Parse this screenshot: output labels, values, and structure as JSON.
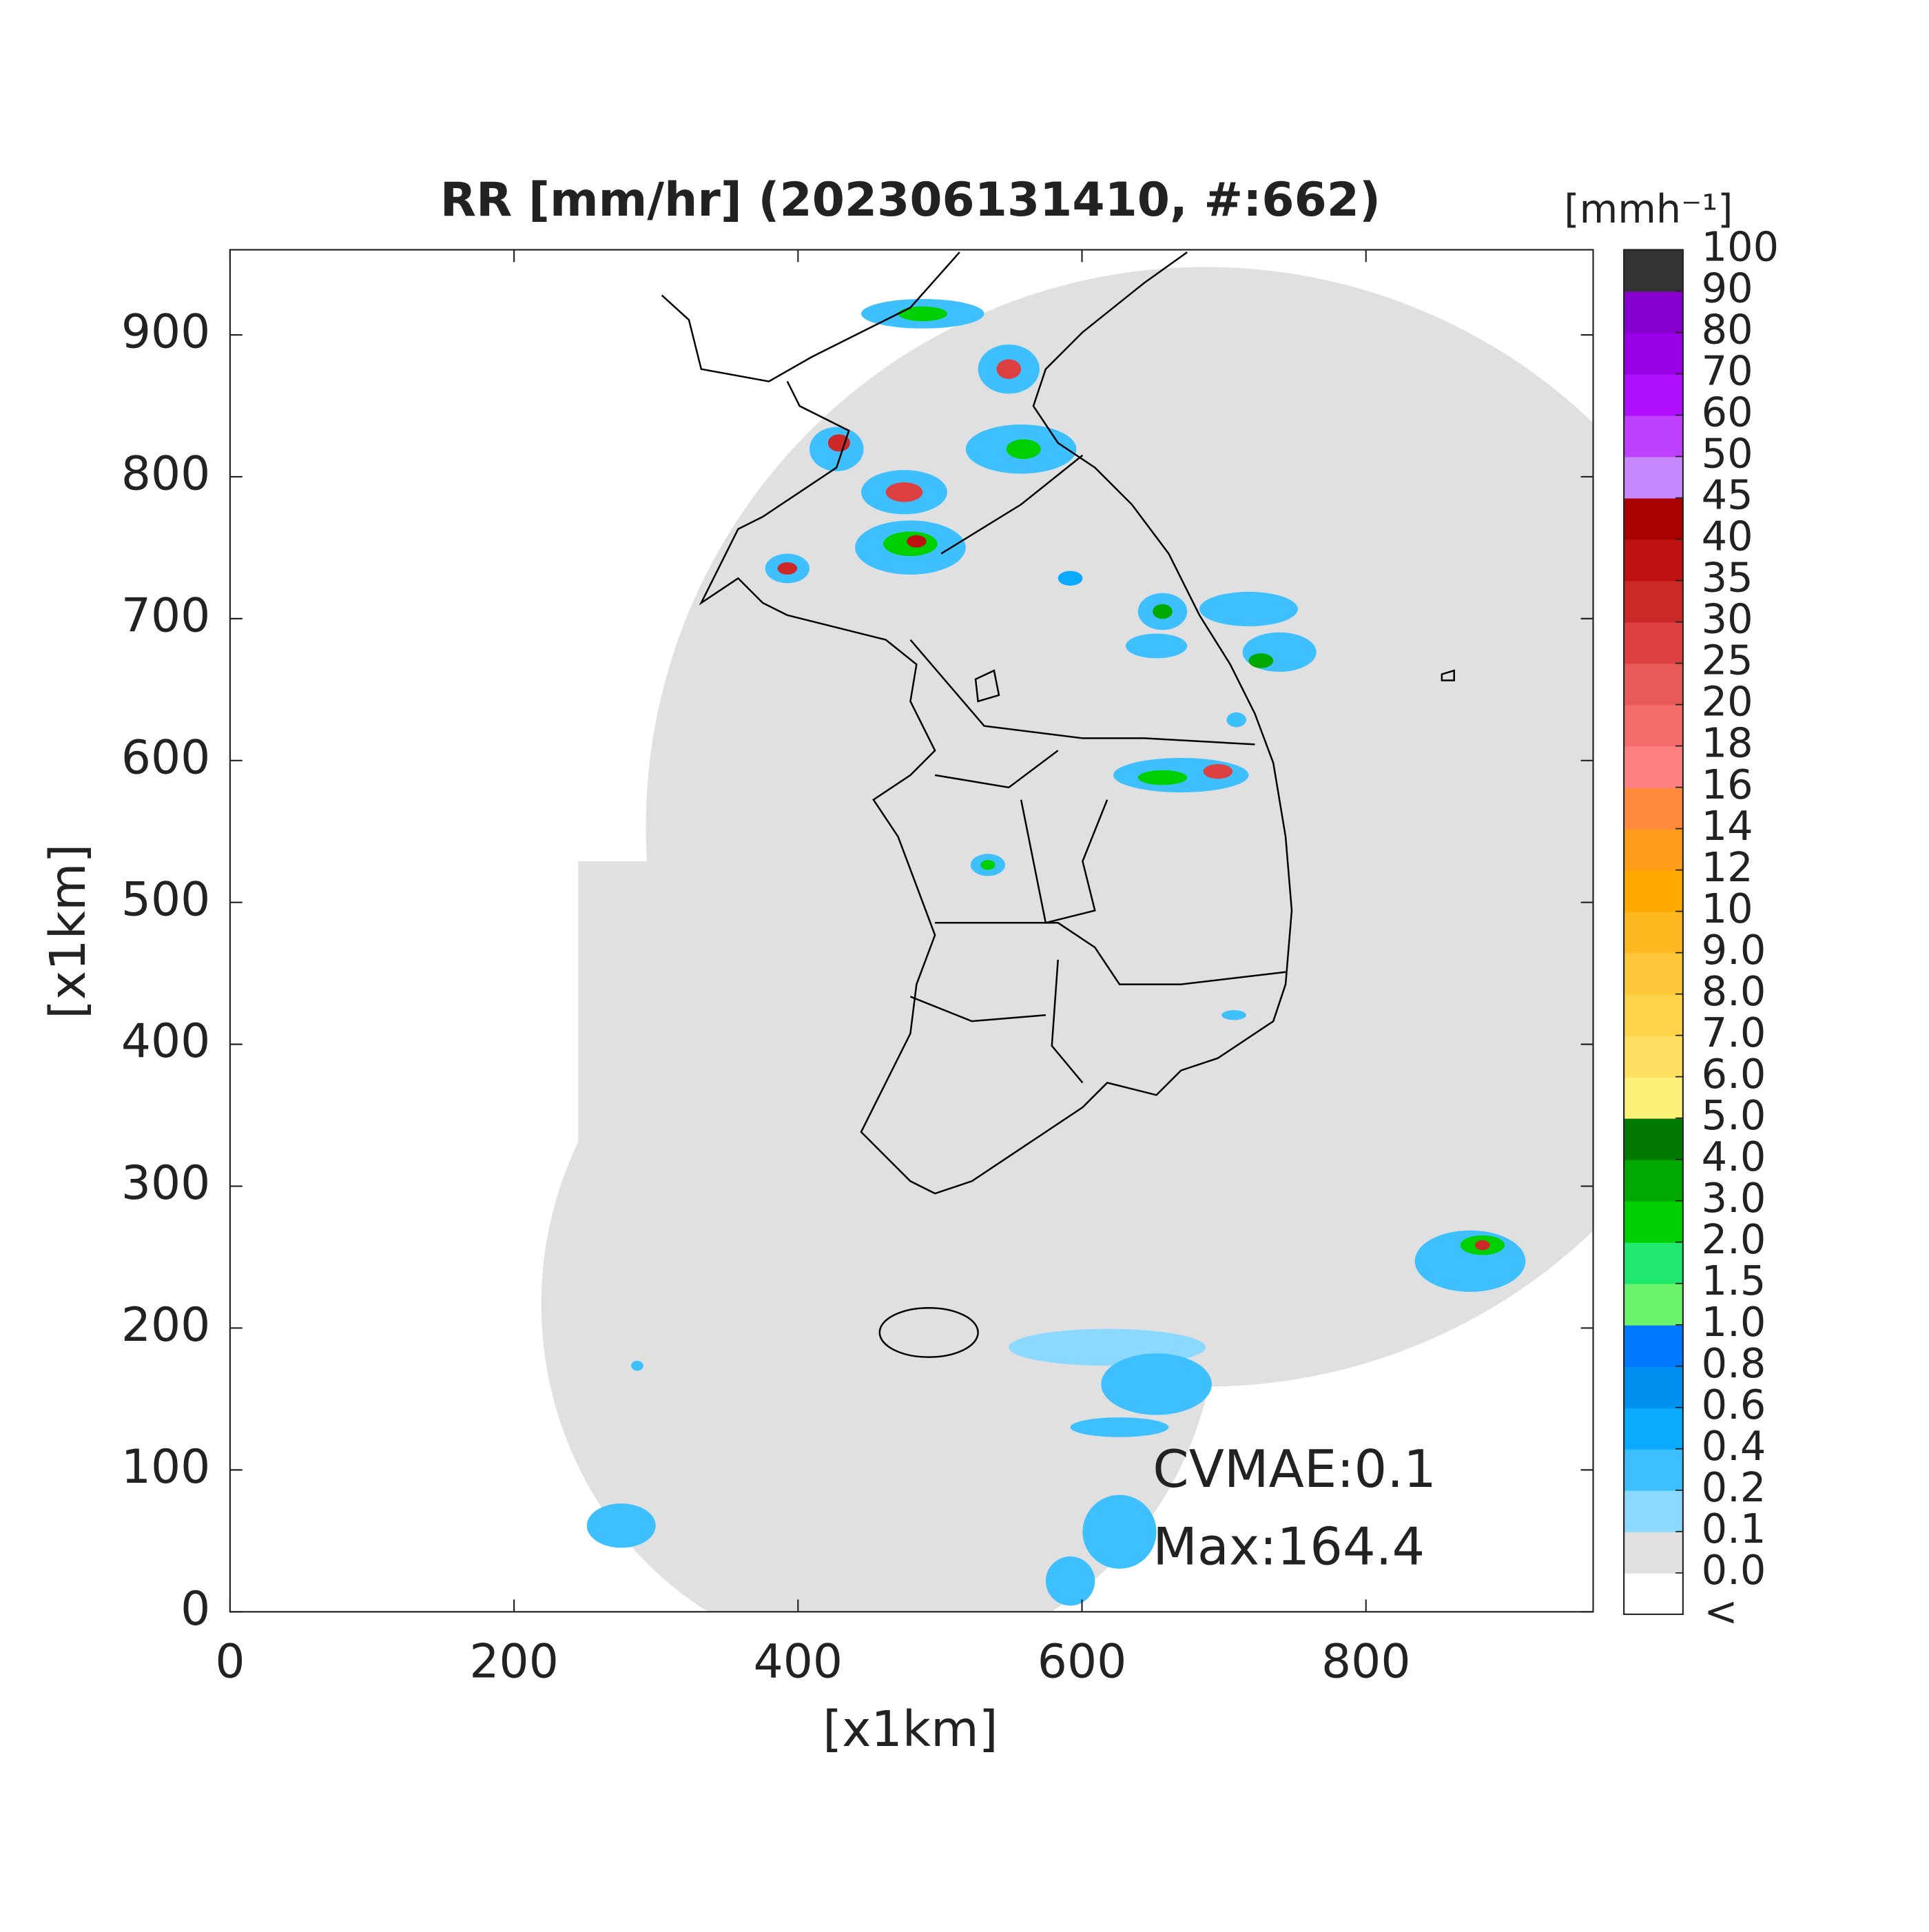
{
  "chart_data": {
    "type": "map",
    "title": "RR [mm/hr] (202306131410, #:662)",
    "x_label": "[x1km]",
    "y_label": "[x1km]",
    "xlim": [
      0,
      960
    ],
    "ylim": [
      0,
      960
    ],
    "xticks": [
      0,
      200,
      400,
      600,
      800
    ],
    "yticks": [
      0,
      100,
      200,
      300,
      400,
      500,
      600,
      700,
      800,
      900
    ],
    "annotations": [
      "CVMAE:0.1",
      "Max:164.4"
    ],
    "colorbar": {
      "label": "[mmh⁻¹]",
      "under_label": "<",
      "ticks": [
        {
          "value": 0,
          "label": "0.0"
        },
        0.1,
        0.2,
        0.4,
        0.6,
        0.8,
        {
          "value": 1,
          "label": "1.0"
        },
        1.5,
        {
          "value": 2,
          "label": "2.0"
        },
        {
          "value": 3,
          "label": "3.0"
        },
        {
          "value": 4,
          "label": "4.0"
        },
        {
          "value": 5,
          "label": "5.0"
        },
        {
          "value": 6,
          "label": "6.0"
        },
        {
          "value": 7,
          "label": "7.0"
        },
        {
          "value": 8,
          "label": "8.0"
        },
        {
          "value": 9,
          "label": "9.0"
        },
        10,
        12,
        14,
        16,
        18,
        20,
        25,
        30,
        35,
        40,
        45,
        50,
        60,
        70,
        80,
        90,
        100
      ],
      "colors": [
        "#ffffff",
        "#e0e0e0",
        "#8cd9ff",
        "#3ec0ff",
        "#0aaaff",
        "#0090f0",
        "#0078ff",
        "#6cf56c",
        "#20e870",
        "#00d000",
        "#00a800",
        "#007a00",
        "#fff07a",
        "#ffe060",
        "#ffd44a",
        "#ffc83a",
        "#ffb820",
        "#ffa800",
        "#ff9c1a",
        "#ff8a3c",
        "#ff8080",
        "#f46c6c",
        "#e85a5a",
        "#dc4040",
        "#cc2828",
        "#be1010",
        "#aa0000",
        "#c888ff",
        "#c040ff",
        "#b010ff",
        "#9a00e8",
        "#8800d0",
        "#333333"
      ]
    }
  }
}
